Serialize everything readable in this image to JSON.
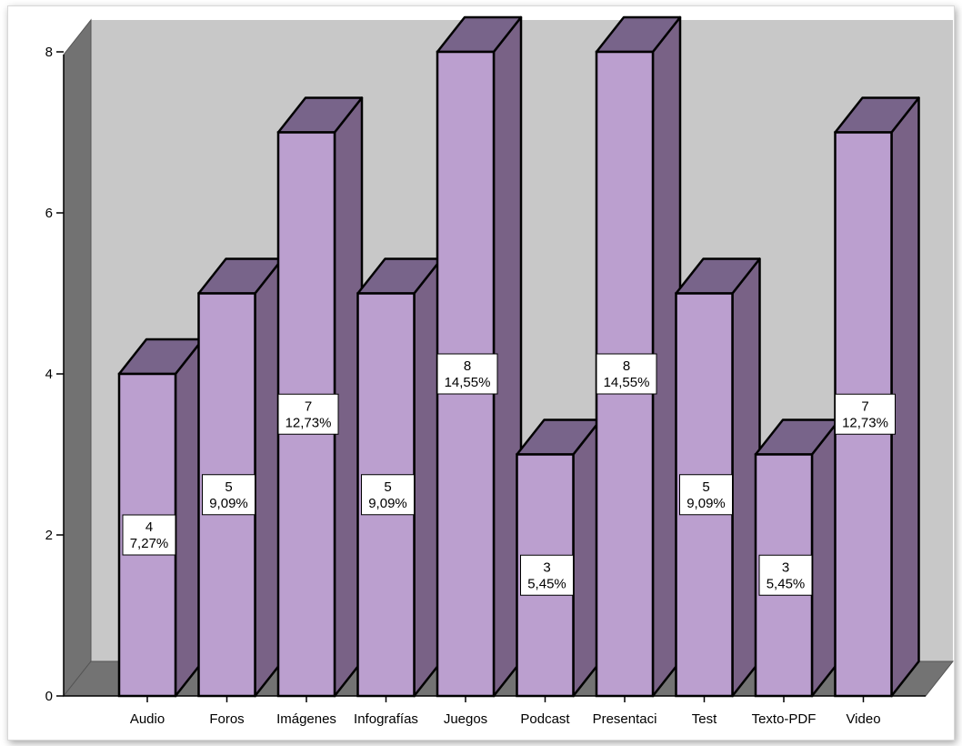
{
  "chart_data": {
    "type": "bar",
    "categories": [
      "Audio",
      "Foros",
      "Imágenes",
      "Infografías",
      "Juegos",
      "Podcast",
      "Presentaci",
      "Test",
      "Texto-PDF",
      "Video"
    ],
    "values": [
      4,
      5,
      7,
      5,
      8,
      3,
      8,
      5,
      3,
      7
    ],
    "data_labels": [
      {
        "count": "4",
        "percent": "7,27%"
      },
      {
        "count": "5",
        "percent": "9,09%"
      },
      {
        "count": "7",
        "percent": "12,73%"
      },
      {
        "count": "5",
        "percent": "9,09%"
      },
      {
        "count": "8",
        "percent": "14,55%"
      },
      {
        "count": "3",
        "percent": "5,45%"
      },
      {
        "count": "8",
        "percent": "14,55%"
      },
      {
        "count": "5",
        "percent": "9,09%"
      },
      {
        "count": "3",
        "percent": "5,45%"
      },
      {
        "count": "7",
        "percent": "12,73%"
      }
    ],
    "y_ticks": [
      "0",
      "2",
      "4",
      "6",
      "8"
    ],
    "ylim": [
      0,
      8
    ],
    "title": "",
    "xlabel": "",
    "ylabel": "",
    "grid": false,
    "legend": "none",
    "three_d": true,
    "colors": {
      "bar_front": "#bb9fcf",
      "bar_side": "#796286",
      "bar_top": "#78648a",
      "back_wall": "#c8c8c8",
      "left_wall": "#727272",
      "floor": "#737373",
      "outline": "#000000",
      "label_box": "#ffffff"
    }
  }
}
